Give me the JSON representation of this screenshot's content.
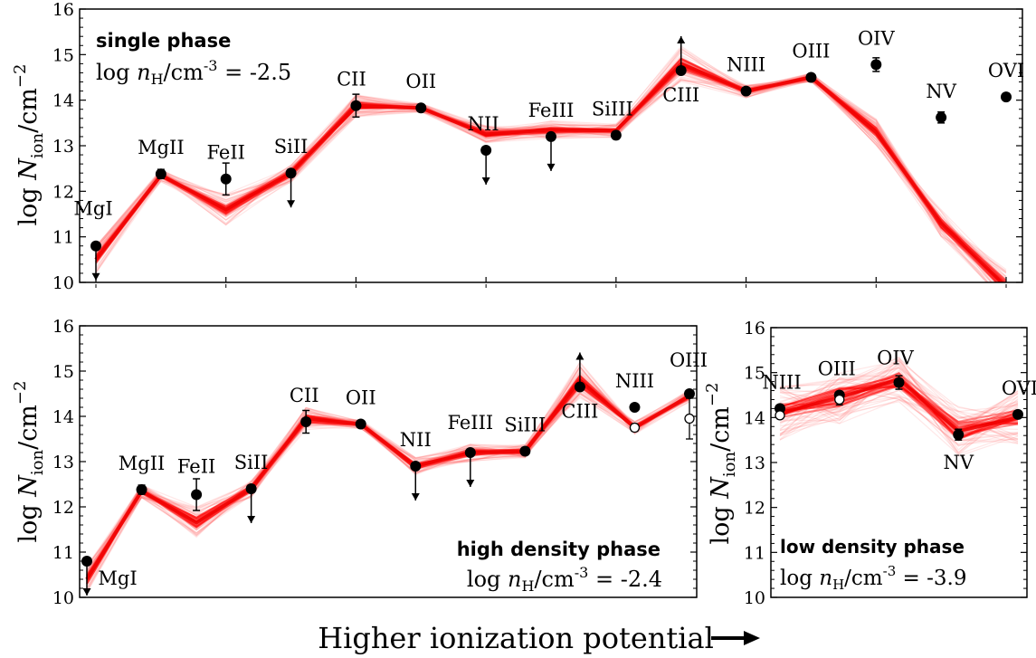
{
  "figure": {
    "xlabel": "Higher ionization potential",
    "arrow_icon": "right-arrow-icon"
  },
  "chart_data": [
    {
      "type": "line",
      "name": "single phase",
      "title": "single phase",
      "density_label_prefix": "log ",
      "density_symbol": "n",
      "density_subscript": "H",
      "density_units": "/cm",
      "density_exponent": "-3",
      "density_eq": " = ",
      "density_value": "-2.5",
      "ylabel_prefix": "log ",
      "ylabel_symbol": "N",
      "ylabel_subscript": "ion",
      "ylabel_units": "/cm",
      "ylabel_exponent": "−2",
      "ylim": [
        10,
        16
      ],
      "y_ticks": [
        "10",
        "11",
        "12",
        "13",
        "14",
        "15",
        "16"
      ],
      "categories": [
        "MgI",
        "MgII",
        "FeII",
        "SiII",
        "CII",
        "OII",
        "NII",
        "FeIII",
        "SiIII",
        "CIII",
        "NIII",
        "OIII",
        "OIV",
        "NV",
        "OVI"
      ],
      "observed": [
        10.8,
        12.38,
        12.27,
        12.4,
        13.88,
        13.83,
        12.9,
        13.2,
        13.23,
        14.65,
        14.2,
        14.5,
        14.78,
        13.62,
        14.07
      ],
      "observed_err": [
        0,
        0.1,
        0.35,
        0.08,
        0.25,
        0.06,
        0,
        0,
        0.08,
        0,
        0.06,
        0.05,
        0.15,
        0.12,
        0.05
      ],
      "limit": [
        "upper",
        "none",
        "none",
        "upper",
        "none",
        "none",
        "upper",
        "upper",
        "none",
        "lower",
        "none",
        "none",
        "none",
        "none",
        "none"
      ],
      "model": [
        10.5,
        12.35,
        11.6,
        12.4,
        13.88,
        13.83,
        13.25,
        13.35,
        13.33,
        14.8,
        14.2,
        14.5,
        13.3,
        11.3,
        9.9
      ],
      "model_band_width": [
        0.3,
        0.15,
        0.35,
        0.2,
        0.25,
        0.1,
        0.2,
        0.2,
        0.15,
        0.4,
        0.15,
        0.1,
        0.3,
        0.3,
        0.4
      ],
      "hollow_points": []
    },
    {
      "type": "line",
      "name": "high density phase",
      "title": "high density phase",
      "density_label_prefix": "log ",
      "density_symbol": "n",
      "density_subscript": "H",
      "density_units": "/cm",
      "density_exponent": "-3",
      "density_eq": " = ",
      "density_value": "-2.4",
      "ylabel_prefix": "log ",
      "ylabel_symbol": "N",
      "ylabel_subscript": "ion",
      "ylabel_units": "/cm",
      "ylabel_exponent": "−2",
      "ylim": [
        10,
        16
      ],
      "y_ticks": [
        "10",
        "11",
        "12",
        "13",
        "14",
        "15",
        "16"
      ],
      "categories": [
        "MgI",
        "MgII",
        "FeII",
        "SiII",
        "CII",
        "OII",
        "NII",
        "FeIII",
        "SiIII",
        "CIII",
        "NIII",
        "OIII"
      ],
      "observed": [
        10.8,
        12.38,
        12.27,
        12.4,
        13.88,
        13.83,
        12.9,
        13.2,
        13.23,
        14.65,
        14.2,
        14.5
      ],
      "observed_err": [
        0,
        0.1,
        0.35,
        0.08,
        0.25,
        0.06,
        0,
        0,
        0.08,
        0,
        0.06,
        0.05
      ],
      "limit": [
        "upper",
        "none",
        "none",
        "upper",
        "none",
        "none",
        "upper",
        "upper",
        "none",
        "lower",
        "none",
        "none"
      ],
      "model": [
        10.4,
        12.35,
        11.65,
        12.4,
        13.95,
        13.83,
        12.9,
        13.2,
        13.23,
        14.8,
        13.75,
        14.45
      ],
      "model_band_width": [
        0.3,
        0.15,
        0.35,
        0.2,
        0.25,
        0.1,
        0.2,
        0.2,
        0.15,
        0.4,
        0.15,
        0.15
      ],
      "hollow_points": [
        {
          "index": 10,
          "value": 13.75,
          "err": 0.08
        },
        {
          "index": 11,
          "value": 13.95,
          "err": 0.45
        }
      ]
    },
    {
      "type": "line",
      "name": "low density phase",
      "title": "low density phase",
      "density_label_prefix": "log ",
      "density_symbol": "n",
      "density_subscript": "H",
      "density_units": "/cm",
      "density_exponent": "-3",
      "density_eq": " = ",
      "density_value": "-3.9",
      "ylabel_prefix": "log ",
      "ylabel_symbol": "N",
      "ylabel_subscript": "ion",
      "ylabel_units": "/cm",
      "ylabel_exponent": "−2",
      "ylim": [
        10,
        16
      ],
      "y_ticks": [
        "10",
        "11",
        "12",
        "13",
        "14",
        "15",
        "16"
      ],
      "categories": [
        "NIII",
        "OIII",
        "OIV",
        "NV",
        "OVI"
      ],
      "observed": [
        14.2,
        14.5,
        14.78,
        13.62,
        14.07
      ],
      "observed_err": [
        0,
        0.05,
        0.15,
        0.12,
        0.05
      ],
      "limit": [
        "none",
        "none",
        "none",
        "none",
        "none"
      ],
      "model": [
        14.1,
        14.45,
        14.85,
        13.7,
        14.0
      ],
      "model_band_width": [
        0.6,
        0.6,
        0.5,
        0.6,
        0.6
      ],
      "hollow_points": [
        {
          "index": 0,
          "value": 14.05,
          "err": 0.05
        },
        {
          "index": 1,
          "value": 14.4,
          "err": 0.12
        }
      ]
    }
  ]
}
